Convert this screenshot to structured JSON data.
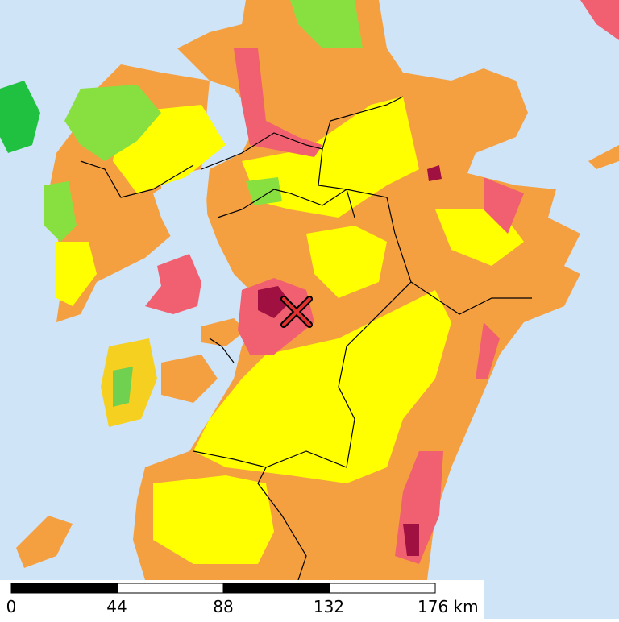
{
  "scale_bar": {
    "labels": [
      "0",
      "44",
      "88",
      "132",
      "176 km"
    ]
  }
}
